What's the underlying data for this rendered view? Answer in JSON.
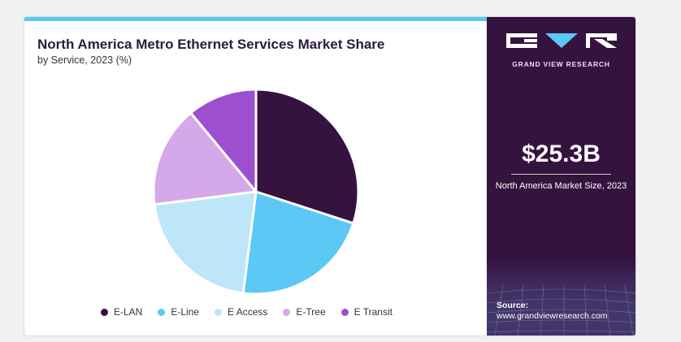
{
  "header": {
    "title": "North America Metro Ethernet Services Market Share",
    "subtitle": "by Service, 2023 (%)"
  },
  "chart_data": {
    "type": "pie",
    "title": "North America Metro Ethernet Services Market Share",
    "subtitle": "by Service, 2023 (%)",
    "categories": [
      "E-LAN",
      "E-Line",
      "E Access",
      "E-Tree",
      "E Transit"
    ],
    "values": [
      30,
      22,
      21,
      16,
      11
    ],
    "colors": [
      "#35133f",
      "#5bc8f5",
      "#bde6f8",
      "#d5a8ea",
      "#9d4fcf"
    ],
    "legend_position": "bottom",
    "start": "12 o'clock",
    "direction": "clockwise"
  },
  "side_panel": {
    "brand": "GRAND VIEW RESEARCH",
    "market_value": "$25.3B",
    "market_label": "North America Market Size, 2023",
    "source_label": "Source:",
    "source_url": "www.grandviewresearch.com",
    "background": "#35133f"
  }
}
